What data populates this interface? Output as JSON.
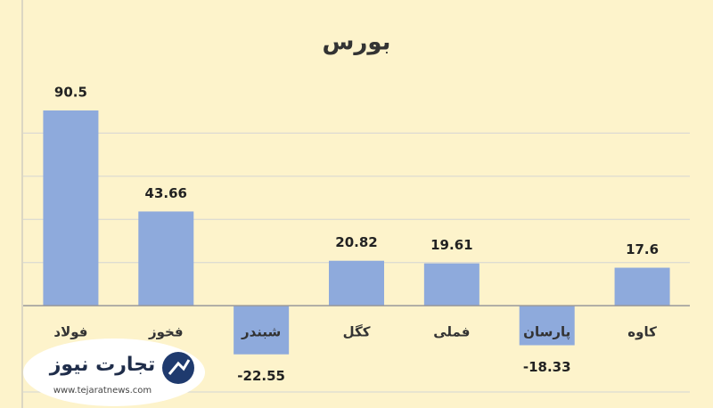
{
  "chart_data": {
    "type": "bar",
    "title": "بورس",
    "categories": [
      "فولاد",
      "فخوز",
      "شبندر",
      "کگل",
      "فملی",
      "پارسان",
      "کاوه"
    ],
    "values": [
      90.5,
      43.66,
      -22.55,
      20.82,
      19.61,
      -18.33,
      17.6
    ],
    "color": "#8eaadc",
    "ylim": [
      -40,
      100
    ],
    "yticks": [
      -40,
      0,
      20,
      40,
      60,
      80
    ],
    "grid": true
  },
  "logo": {
    "name": "تجارت نیوز",
    "url": "www.tejaratnews.com"
  }
}
